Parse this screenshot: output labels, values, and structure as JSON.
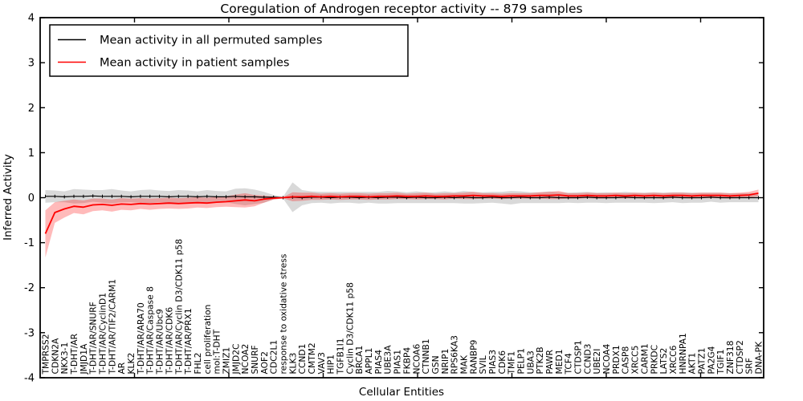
{
  "title": "Coregulation of Androgen receptor activity -- 879 samples",
  "axes": {
    "xlabel": "Cellular Entities",
    "ylabel": "Inferred Activity",
    "yticks": [
      4,
      3,
      2,
      1,
      0,
      -1,
      -2,
      -3,
      -4
    ],
    "xticks": [
      10,
      20,
      30,
      40,
      50,
      60,
      70
    ],
    "ylim": [
      -4,
      4
    ]
  },
  "legend": {
    "items": [
      {
        "label": "Mean activity in all permuted samples",
        "color": "#000000"
      },
      {
        "label": "Mean activity in patient samples",
        "color": "#ff0000"
      }
    ]
  },
  "chart_data": {
    "type": "line",
    "title": "Coregulation of Androgen receptor activity -- 879 samples",
    "xlabel": "Cellular Entities",
    "ylabel": "Inferred Activity",
    "ylim": [
      -4,
      4
    ],
    "grid": false,
    "legend_position": "upper left",
    "categories": [
      "TMPRSS2",
      "CDKN2A",
      "NKX3-1",
      "T-DHT/AR",
      "JMJD1A",
      "T-DHT/AR/SNURF",
      "T-DHT/AR/CyclinD1",
      "T-DHT/AR/TIF2/CARM1",
      "AR",
      "KLK2",
      "T-DHT/AR/ARA70",
      "T-DHT/AR/Caspase 8",
      "T-DHT/AR/Ubc9",
      "T-DHT/AR/CDK6",
      "T-DHT/AR/Cyclin D3/CDK11 p58",
      "T-DHT/AR/PRX1",
      "FHL2",
      "cell proliferation",
      "mol:T-DHT",
      "ZMIZ1",
      "JMJD2C",
      "NCOA2",
      "SNURF",
      "AOF2",
      "CDC2L1",
      "response to oxidative stress",
      "KLK3",
      "CCND1",
      "CMTM2",
      "VAV3",
      "HIP1",
      "TGFB1I1",
      "Cyclin D3/CDK11 p58",
      "BRCA1",
      "APPL1",
      "PIAS4",
      "UBE3A",
      "PIAS1",
      "FKBP4",
      "NCOA6",
      "CTNNB1",
      "GSN",
      "NRIP1",
      "RPS6KA3",
      "MAK",
      "RANBP9",
      "SVIL",
      "PIAS3",
      "CDK6",
      "TMF1",
      "PELP1",
      "UBA3",
      "PTK2B",
      "PAWR",
      "MED1",
      "TCF4",
      "CTDSP1",
      "CCND3",
      "UBE2I",
      "NCOA4",
      "PRDX1",
      "CASP8",
      "XRCC5",
      "CARM1",
      "PRKDC",
      "LATS2",
      "XRCC6",
      "HNRNPA1",
      "AKT1",
      "PATZ1",
      "PA2G4",
      "TGIF1",
      "ZNF318",
      "CTDSP2",
      "SRF",
      "DNA-PK"
    ],
    "series": [
      {
        "name": "Mean activity in all permuted samples",
        "color": "#000000",
        "band_fill": "rgba(0,0,0,0.15)",
        "values": [
          0.03,
          0.03,
          0.02,
          0.03,
          0.03,
          0.04,
          0.03,
          0.03,
          0.03,
          0.02,
          0.03,
          0.03,
          0.03,
          0.02,
          0.03,
          0.03,
          0.02,
          0.03,
          0.02,
          0.02,
          0.03,
          0.02,
          0.02,
          0.01,
          0.01,
          0.0,
          0.01,
          0.0,
          0.01,
          0.01,
          0.0,
          0.01,
          0.01,
          0.0,
          0.01,
          0.0,
          0.01,
          0.01,
          0.0,
          0.01,
          0.0,
          0.0,
          0.01,
          0.0,
          0.01,
          0.0,
          0.0,
          0.01,
          0.0,
          0.0,
          0.01,
          0.0,
          0.0,
          0.01,
          0.0,
          0.0,
          0.0,
          0.01,
          0.0,
          0.0,
          0.0,
          0.01,
          0.0,
          0.0,
          0.0,
          0.0,
          0.01,
          0.0,
          0.0,
          0.0,
          0.01,
          0.0,
          0.0,
          0.0,
          0.0,
          0.0
        ],
        "band_halfwidth": [
          0.14,
          0.13,
          0.12,
          0.16,
          0.15,
          0.13,
          0.14,
          0.16,
          0.13,
          0.12,
          0.14,
          0.15,
          0.13,
          0.13,
          0.14,
          0.13,
          0.12,
          0.14,
          0.13,
          0.12,
          0.17,
          0.19,
          0.16,
          0.12,
          0.05,
          0.02,
          0.33,
          0.17,
          0.13,
          0.12,
          0.13,
          0.12,
          0.12,
          0.13,
          0.12,
          0.13,
          0.14,
          0.13,
          0.12,
          0.13,
          0.12,
          0.12,
          0.13,
          0.12,
          0.14,
          0.13,
          0.12,
          0.12,
          0.13,
          0.15,
          0.13,
          0.12,
          0.12,
          0.13,
          0.12,
          0.11,
          0.12,
          0.12,
          0.11,
          0.12,
          0.11,
          0.12,
          0.11,
          0.11,
          0.12,
          0.11,
          0.11,
          0.12,
          0.11,
          0.11,
          0.1,
          0.11,
          0.1,
          0.1,
          0.1,
          0.1
        ]
      },
      {
        "name": "Mean activity in patient samples",
        "color": "#ff0000",
        "band_fill": "rgba(255,0,0,0.27)",
        "values": [
          -0.8,
          -0.33,
          -0.25,
          -0.19,
          -0.21,
          -0.16,
          -0.15,
          -0.17,
          -0.14,
          -0.15,
          -0.13,
          -0.14,
          -0.13,
          -0.12,
          -0.13,
          -0.12,
          -0.11,
          -0.12,
          -0.1,
          -0.09,
          -0.07,
          -0.05,
          -0.07,
          -0.03,
          -0.01,
          0.0,
          0.02,
          0.02,
          0.03,
          0.02,
          0.03,
          0.02,
          0.03,
          0.03,
          0.02,
          0.03,
          0.03,
          0.04,
          0.03,
          0.03,
          0.04,
          0.03,
          0.03,
          0.04,
          0.04,
          0.05,
          0.04,
          0.04,
          0.03,
          0.04,
          0.04,
          0.04,
          0.05,
          0.05,
          0.06,
          0.04,
          0.04,
          0.05,
          0.04,
          0.04,
          0.05,
          0.04,
          0.05,
          0.04,
          0.05,
          0.04,
          0.05,
          0.05,
          0.04,
          0.05,
          0.05,
          0.05,
          0.04,
          0.05,
          0.06,
          0.1
        ],
        "band_upper": [
          -0.28,
          -0.1,
          -0.07,
          -0.04,
          -0.06,
          -0.02,
          -0.02,
          -0.04,
          -0.01,
          -0.02,
          -0.01,
          -0.02,
          -0.01,
          0.0,
          -0.01,
          0.0,
          0.01,
          0.0,
          0.02,
          0.03,
          0.07,
          0.1,
          0.06,
          0.05,
          0.02,
          0.01,
          0.12,
          0.11,
          0.11,
          0.09,
          0.1,
          0.09,
          0.1,
          0.1,
          0.09,
          0.1,
          0.1,
          0.11,
          0.09,
          0.1,
          0.11,
          0.09,
          0.1,
          0.1,
          0.11,
          0.13,
          0.1,
          0.1,
          0.09,
          0.1,
          0.1,
          0.1,
          0.12,
          0.13,
          0.15,
          0.1,
          0.1,
          0.11,
          0.1,
          0.1,
          0.11,
          0.1,
          0.11,
          0.1,
          0.11,
          0.1,
          0.11,
          0.11,
          0.1,
          0.11,
          0.11,
          0.11,
          0.1,
          0.11,
          0.13,
          0.18
        ],
        "band_lower": [
          -1.33,
          -0.56,
          -0.44,
          -0.34,
          -0.37,
          -0.3,
          -0.28,
          -0.31,
          -0.27,
          -0.28,
          -0.25,
          -0.27,
          -0.25,
          -0.24,
          -0.25,
          -0.24,
          -0.22,
          -0.23,
          -0.21,
          -0.2,
          -0.21,
          -0.22,
          -0.19,
          -0.11,
          -0.04,
          -0.01,
          -0.08,
          -0.07,
          -0.05,
          -0.05,
          -0.04,
          -0.05,
          -0.04,
          -0.04,
          -0.05,
          -0.04,
          -0.04,
          -0.03,
          -0.03,
          -0.04,
          -0.03,
          -0.03,
          -0.04,
          -0.02,
          -0.03,
          -0.03,
          -0.02,
          -0.02,
          -0.03,
          -0.02,
          -0.02,
          -0.02,
          -0.02,
          -0.03,
          -0.03,
          -0.02,
          -0.02,
          -0.01,
          -0.02,
          -0.02,
          -0.01,
          -0.02,
          -0.01,
          -0.02,
          -0.01,
          -0.02,
          -0.01,
          -0.01,
          -0.02,
          -0.01,
          -0.01,
          -0.01,
          -0.02,
          -0.01,
          0.0,
          0.03
        ]
      }
    ]
  }
}
